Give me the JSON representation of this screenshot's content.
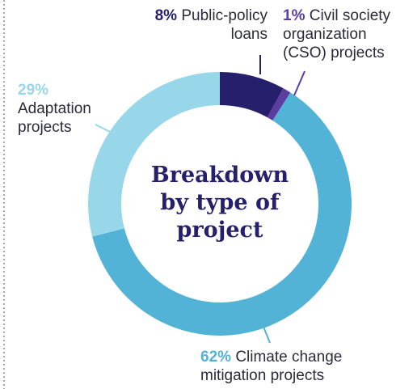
{
  "chart_data": {
    "type": "donut",
    "title": "Breakdown by type of project",
    "categories": [
      "Public-policy loans",
      "Civil society organization (CSO) projects",
      "Climate change mitigation projects",
      "Adaptation projects"
    ],
    "values": [
      8,
      1,
      62,
      29
    ],
    "value_labels": [
      "8%",
      "1%",
      "62%",
      "29%"
    ],
    "colors": [
      "#261f6b",
      "#5a3d9f",
      "#52b3d7",
      "#98d6ea"
    ]
  }
}
